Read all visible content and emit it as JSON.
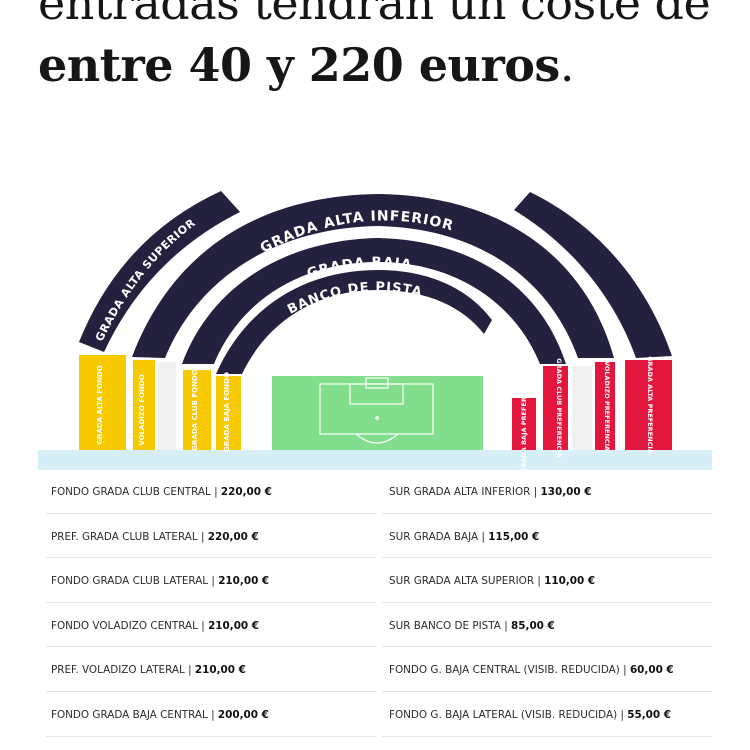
{
  "headline": {
    "line1": "entradas tendrán un coste de",
    "line2": "entre 40 y 220 euros",
    "line2_end": "."
  },
  "stadium": {
    "arcs": {
      "grada_alta_superior": "GRADA ALTA SUPERIOR",
      "grada_alta_inferior": "GRADA ALTA INFERIOR",
      "grada_baja": "GRADA BAJA",
      "banco_de_pista": "BANCO DE PISTA"
    },
    "left_blocks": [
      "GRADA ALTA FONDO",
      "VOLADIZO FONDO",
      "GRADA CLUB FONDO",
      "GRADA BAJA FONDO"
    ],
    "right_blocks": [
      "GRADA BAJA PREFERENCIA",
      "GRADA CLUB PREFERENCIA",
      "VOLADIZO PREFERENCIA",
      "GRADA ALTA PREFERENCIA"
    ],
    "colors": {
      "navy": "#24213f",
      "yellow": "#f6c900",
      "red": "#e3173d",
      "field": "#82dd8c",
      "band": "#d6eef6"
    }
  },
  "prices": {
    "left": [
      {
        "label": "FONDO GRADA CLUB CENTRAL | ",
        "price": "220,00 €"
      },
      {
        "label": "PREF. GRADA CLUB LATERAL | ",
        "price": "220,00 €"
      },
      {
        "label": "FONDO GRADA CLUB LATERAL | ",
        "price": "210,00 €"
      },
      {
        "label": "FONDO VOLADIZO CENTRAL | ",
        "price": "210,00 €"
      },
      {
        "label": "PREF. VOLADIZO LATERAL | ",
        "price": "210,00 €"
      },
      {
        "label": "FONDO GRADA BAJA CENTRAL | ",
        "price": "200,00 €"
      }
    ],
    "right": [
      {
        "label": "SUR GRADA ALTA INFERIOR | ",
        "price": "130,00 €"
      },
      {
        "label": "SUR GRADA BAJA | ",
        "price": "115,00 €"
      },
      {
        "label": "SUR GRADA ALTA SUPERIOR | ",
        "price": "110,00 €"
      },
      {
        "label": "SUR BANCO DE PISTA | ",
        "price": "85,00 €"
      },
      {
        "label": "FONDO G. BAJA CENTRAL (VISIB. REDUCIDA) | ",
        "price": "60,00 €"
      },
      {
        "label": "FONDO G. BAJA LATERAL (VISIB. REDUCIDA) | ",
        "price": "55,00 €"
      }
    ]
  }
}
